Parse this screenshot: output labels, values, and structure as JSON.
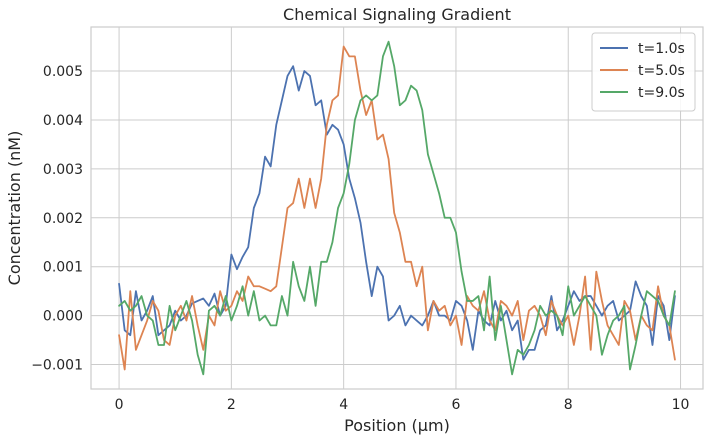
{
  "chart_data": {
    "type": "line",
    "title": "Chemical Signaling Gradient",
    "xlabel": "Position (µm)",
    "ylabel": "Concentration (nM)",
    "xlim": [
      -0.5,
      10.4
    ],
    "ylim": [
      -0.0015,
      0.0059
    ],
    "xticks": [
      0,
      2,
      4,
      6,
      8,
      10
    ],
    "xtick_labels": [
      "0",
      "2",
      "4",
      "6",
      "8",
      "10"
    ],
    "yticks": [
      -0.001,
      0.0,
      0.001,
      0.002,
      0.003,
      0.004,
      0.005
    ],
    "ytick_labels": [
      "−0.001",
      "0.000",
      "0.001",
      "0.002",
      "0.003",
      "0.004",
      "0.005"
    ],
    "grid": true,
    "legend_position": "top-right",
    "x": [
      0.0,
      0.1,
      0.2,
      0.3,
      0.4,
      0.5,
      0.6,
      0.7,
      0.8,
      0.9,
      1.0,
      1.1,
      1.2,
      1.3,
      1.4,
      1.5,
      1.6,
      1.7,
      1.8,
      1.9,
      2.0,
      2.1,
      2.2,
      2.3,
      2.4,
      2.5,
      2.6,
      2.7,
      2.8,
      2.9,
      3.0,
      3.1,
      3.2,
      3.3,
      3.4,
      3.5,
      3.6,
      3.7,
      3.8,
      3.9,
      4.0,
      4.1,
      4.2,
      4.3,
      4.4,
      4.5,
      4.6,
      4.7,
      4.8,
      4.9,
      5.0,
      5.1,
      5.2,
      5.3,
      5.4,
      5.5,
      5.6,
      5.7,
      5.8,
      5.9,
      6.0,
      6.1,
      6.2,
      6.3,
      6.4,
      6.5,
      6.6,
      6.7,
      6.8,
      6.9,
      7.0,
      7.1,
      7.2,
      7.3,
      7.4,
      7.5,
      7.6,
      7.7,
      7.8,
      7.9,
      8.0,
      8.1,
      8.2,
      8.3,
      8.4,
      8.5,
      8.6,
      8.7,
      8.8,
      8.9,
      9.0,
      9.1,
      9.2,
      9.3,
      9.4,
      9.5,
      9.6,
      9.7,
      9.8,
      9.9
    ],
    "series": [
      {
        "name": "t=1.0s",
        "color": "#4c72b0",
        "values": [
          0.00065,
          -0.0003,
          -0.0004,
          0.0005,
          -0.0001,
          0.0001,
          0.0004,
          -0.0004,
          -0.0003,
          -0.0002,
          0.0001,
          -0.0001,
          0.0,
          0.00025,
          0.0003,
          0.00035,
          0.0002,
          0.00045,
          0.0,
          0.0002,
          0.00125,
          0.00095,
          0.0012,
          0.0014,
          0.0022,
          0.0025,
          0.00325,
          0.00305,
          0.0039,
          0.0044,
          0.0049,
          0.0051,
          0.0046,
          0.005,
          0.0049,
          0.0043,
          0.0044,
          0.0037,
          0.0039,
          0.0038,
          0.0035,
          0.0028,
          0.0024,
          0.0019,
          0.0011,
          0.0004,
          0.001,
          0.0008,
          -0.0001,
          0.0,
          0.0002,
          -0.0002,
          0.0,
          -0.0001,
          -0.0002,
          0.0,
          0.0003,
          0.0,
          0.0,
          -0.0001,
          0.0003,
          0.0002,
          -0.0001,
          -0.0007,
          0.0001,
          -0.0001,
          -0.0002,
          0.0003,
          -0.0001,
          0.0001,
          -0.0003,
          -0.0001,
          -0.0009,
          -0.0007,
          -0.0007,
          -0.0003,
          -0.0002,
          0.0004,
          -0.0003,
          -0.0001,
          0.0002,
          0.0005,
          0.0003,
          0.0004,
          0.0004,
          0.0002,
          0.0,
          0.0002,
          0.0003,
          -0.0001,
          0.0,
          0.0001,
          0.0007,
          0.0004,
          0.0002,
          -0.0006,
          0.0004,
          0.0002,
          -0.0005,
          0.0004
        ]
      },
      {
        "name": "t=5.0s",
        "color": "#dd8452",
        "values": [
          -0.0004,
          -0.0011,
          0.0005,
          -0.0007,
          -0.0004,
          -0.0001,
          0.0003,
          0.0001,
          -0.0005,
          -0.0006,
          0.0,
          0.0002,
          -0.0001,
          0.0004,
          -0.0002,
          -0.0007,
          0.0,
          -0.0002,
          0.0005,
          0.0001,
          0.0002,
          0.0005,
          0.0003,
          0.0008,
          0.0006,
          0.0006,
          0.00055,
          0.0005,
          0.0006,
          0.0014,
          0.0022,
          0.0023,
          0.0028,
          0.0022,
          0.0028,
          0.0022,
          0.0028,
          0.0039,
          0.0044,
          0.0045,
          0.0055,
          0.0053,
          0.0053,
          0.0046,
          0.0041,
          0.0044,
          0.0036,
          0.0037,
          0.0032,
          0.0021,
          0.0017,
          0.0011,
          0.0011,
          0.0006,
          0.001,
          -0.0003,
          0.0003,
          0.0001,
          0.0002,
          -0.0002,
          0.0,
          -0.0006,
          0.0004,
          0.0002,
          0.0001,
          0.0005,
          -0.0001,
          -0.0003,
          0.0003,
          0.0002,
          0.0,
          0.0003,
          -0.0005,
          0.0001,
          0.0002,
          0.0,
          -0.0004,
          0.0003,
          0.0,
          -0.0002,
          0.0,
          -0.0006,
          0.0,
          0.0008,
          -0.0007,
          0.0009,
          0.0003,
          -0.0002,
          -0.0004,
          -0.0006,
          0.0003,
          0.0001,
          -0.0005,
          0.0,
          -0.0002,
          -0.0003,
          0.0006,
          0.0,
          -0.0002,
          -0.0009
        ]
      },
      {
        "name": "t=9.0s",
        "color": "#55a868",
        "values": [
          0.0002,
          0.0003,
          0.0001,
          0.0002,
          0.0004,
          0.0,
          -0.0001,
          -0.0006,
          -0.0006,
          0.0002,
          -0.0003,
          0.0,
          0.0003,
          -0.0001,
          -0.0008,
          -0.0012,
          0.0001,
          0.0002,
          0.0,
          0.0004,
          -0.0001,
          0.0002,
          0.0006,
          0.0,
          0.0005,
          -0.0001,
          0.0,
          -0.0002,
          -0.0002,
          0.0004,
          0.0,
          0.0011,
          0.0006,
          0.0003,
          0.001,
          0.0002,
          0.0011,
          0.0011,
          0.0015,
          0.0022,
          0.0025,
          0.0031,
          0.004,
          0.0044,
          0.0045,
          0.0044,
          0.0045,
          0.0053,
          0.0056,
          0.0051,
          0.0043,
          0.0044,
          0.0047,
          0.0046,
          0.0042,
          0.0033,
          0.0029,
          0.0025,
          0.002,
          0.002,
          0.0017,
          0.0009,
          0.0003,
          0.0003,
          0.0004,
          -0.0003,
          0.0008,
          -0.0005,
          0.0002,
          -0.0005,
          -0.0012,
          -0.0007,
          -0.0008,
          -0.0006,
          -0.0003,
          0.0002,
          0.0,
          0.0001,
          0.0,
          -0.0004,
          0.0006,
          0.0,
          0.0002,
          0.0004,
          0.0002,
          0.0,
          -0.0008,
          -0.0004,
          -0.0001,
          0.0,
          0.0002,
          -0.0011,
          -0.0006,
          0.0,
          0.0005,
          0.0004,
          0.0003,
          0.0,
          -0.0002,
          0.0005
        ]
      }
    ]
  }
}
